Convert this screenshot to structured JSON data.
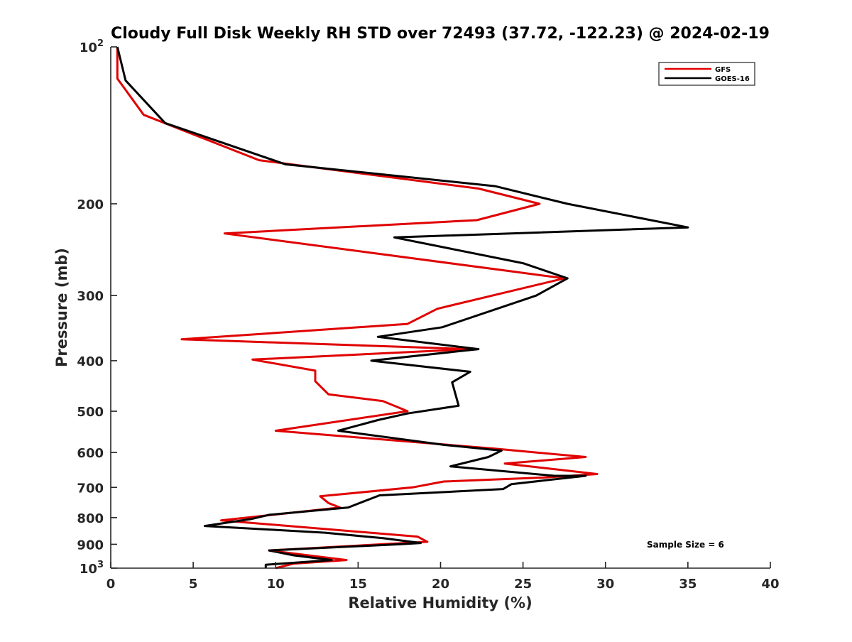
{
  "chart_data": {
    "type": "line",
    "title": "Cloudy Full Disk Weekly RH STD over 72493 (37.72, -122.23) @ 2024-02-19",
    "xlabel": "Relative Humidity (%)",
    "ylabel": "Pressure (mb)",
    "xlim": [
      0,
      40
    ],
    "ylim": [
      100,
      1000
    ],
    "y_scale": "log",
    "y_reversed": true,
    "grid": false,
    "legend_position": "top-right",
    "annotation": "Sample Size = 6",
    "x_ticks": [
      {
        "value": 0,
        "label": "0"
      },
      {
        "value": 5,
        "label": "5"
      },
      {
        "value": 10,
        "label": "10"
      },
      {
        "value": 15,
        "label": "15"
      },
      {
        "value": 20,
        "label": "20"
      },
      {
        "value": 25,
        "label": "25"
      },
      {
        "value": 30,
        "label": "30"
      },
      {
        "value": 35,
        "label": "35"
      },
      {
        "value": 40,
        "label": "40"
      }
    ],
    "y_ticks": [
      {
        "value": 100,
        "label": "10",
        "sup": "2"
      },
      {
        "value": 200,
        "label": "200",
        "sup": ""
      },
      {
        "value": 300,
        "label": "300",
        "sup": ""
      },
      {
        "value": 400,
        "label": "400",
        "sup": ""
      },
      {
        "value": 500,
        "label": "500",
        "sup": ""
      },
      {
        "value": 600,
        "label": "600",
        "sup": ""
      },
      {
        "value": 700,
        "label": "700",
        "sup": ""
      },
      {
        "value": 800,
        "label": "800",
        "sup": ""
      },
      {
        "value": 900,
        "label": "900",
        "sup": ""
      },
      {
        "value": 1000,
        "label": "10",
        "sup": "3"
      }
    ],
    "series": [
      {
        "name": "GFS",
        "color": "#e00000",
        "points": [
          [
            0.4,
            100
          ],
          [
            0.4,
            115
          ],
          [
            2.0,
            135
          ],
          [
            9.0,
            165
          ],
          [
            22.3,
            187
          ],
          [
            26.0,
            200
          ],
          [
            22.2,
            215
          ],
          [
            6.9,
            228
          ],
          [
            27.5,
            278
          ],
          [
            19.8,
            318
          ],
          [
            18.0,
            340
          ],
          [
            4.3,
            364
          ],
          [
            21.8,
            380
          ],
          [
            8.6,
            398
          ],
          [
            12.4,
            418
          ],
          [
            12.4,
            438
          ],
          [
            13.2,
            464
          ],
          [
            16.5,
            478
          ],
          [
            18.0,
            500
          ],
          [
            10.0,
            545
          ],
          [
            23.3,
            590
          ],
          [
            28.8,
            612
          ],
          [
            23.9,
            630
          ],
          [
            29.5,
            660
          ],
          [
            26.4,
            670
          ],
          [
            20.2,
            682
          ],
          [
            18.3,
            700
          ],
          [
            12.7,
            728
          ],
          [
            13.2,
            750
          ],
          [
            13.9,
            765
          ],
          [
            6.7,
            810
          ],
          [
            18.6,
            870
          ],
          [
            19.2,
            890
          ],
          [
            9.6,
            925
          ],
          [
            14.3,
            965
          ],
          [
            11.1,
            980
          ],
          [
            10.0,
            1000
          ]
        ]
      },
      {
        "name": "GOES-16",
        "color": "#000000",
        "points": [
          [
            0.4,
            100
          ],
          [
            0.9,
            116
          ],
          [
            3.3,
            140
          ],
          [
            10.6,
            168
          ],
          [
            23.3,
            185
          ],
          [
            27.7,
            200
          ],
          [
            35.0,
            222
          ],
          [
            17.2,
            232
          ],
          [
            25.0,
            260
          ],
          [
            27.7,
            278
          ],
          [
            25.8,
            300
          ],
          [
            20.1,
            345
          ],
          [
            16.2,
            360
          ],
          [
            22.3,
            380
          ],
          [
            15.8,
            400
          ],
          [
            21.8,
            420
          ],
          [
            20.7,
            440
          ],
          [
            21.1,
            488
          ],
          [
            18.0,
            505
          ],
          [
            16.2,
            520
          ],
          [
            13.8,
            545
          ],
          [
            20.2,
            580
          ],
          [
            23.7,
            595
          ],
          [
            22.9,
            612
          ],
          [
            20.6,
            638
          ],
          [
            26.9,
            665
          ],
          [
            28.8,
            665
          ],
          [
            24.3,
            690
          ],
          [
            23.8,
            705
          ],
          [
            16.3,
            725
          ],
          [
            14.4,
            765
          ],
          [
            9.6,
            790
          ],
          [
            8.5,
            805
          ],
          [
            5.7,
            830
          ],
          [
            13.0,
            855
          ],
          [
            16.5,
            876
          ],
          [
            18.8,
            895
          ],
          [
            17.5,
            900
          ],
          [
            9.6,
            925
          ],
          [
            11.1,
            945
          ],
          [
            13.4,
            965
          ],
          [
            9.4,
            985
          ],
          [
            9.4,
            1000
          ]
        ]
      }
    ]
  }
}
